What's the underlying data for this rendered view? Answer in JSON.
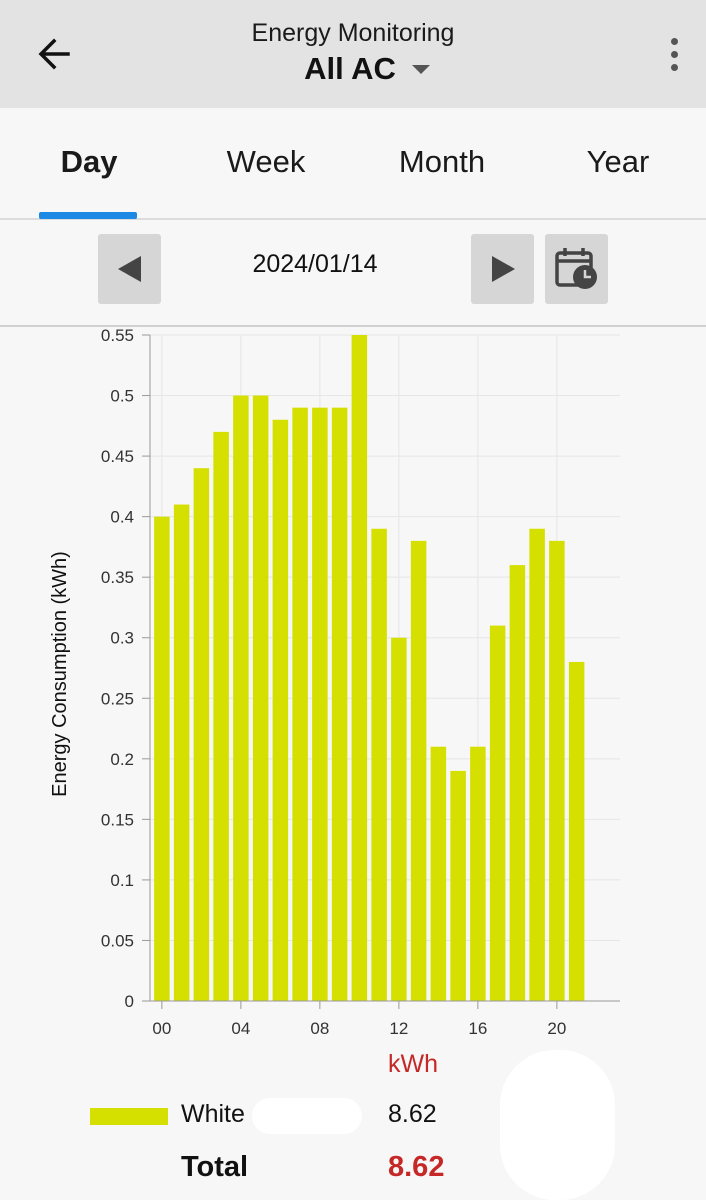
{
  "header": {
    "subtitle": "Energy Monitoring",
    "title": "All AC",
    "back_icon": "arrow-left-icon",
    "menu_icon": "more-vertical-icon",
    "dropdown_icon": "caret-down-icon"
  },
  "tabs": [
    {
      "label": "Day",
      "active": true
    },
    {
      "label": "Week",
      "active": false
    },
    {
      "label": "Month",
      "active": false
    },
    {
      "label": "Year",
      "active": false
    }
  ],
  "date_nav": {
    "date": "2024/01/14",
    "prev_icon": "triangle-left-icon",
    "next_icon": "triangle-right-icon",
    "calendar_icon": "calendar-clock-icon"
  },
  "colors": {
    "bar": "#d6e000",
    "accent_tab": "#1e88e5",
    "total_red": "#c62828"
  },
  "chart_data": {
    "type": "bar",
    "ylabel": "Energy Consumption (kWh)",
    "xlabel": "",
    "ylim": [
      0,
      0.55
    ],
    "yticks": [
      "0",
      "0.05",
      "0.1",
      "0.15",
      "0.2",
      "0.25",
      "0.3",
      "0.35",
      "0.4",
      "0.45",
      "0.5",
      "0.55"
    ],
    "x": [
      0,
      1,
      2,
      3,
      4,
      5,
      6,
      7,
      8,
      9,
      10,
      11,
      12,
      13,
      14,
      15,
      16,
      17,
      18,
      19,
      20,
      21
    ],
    "xticks": [
      {
        "hour": 0,
        "label": "00"
      },
      {
        "hour": 4,
        "label": "04"
      },
      {
        "hour": 8,
        "label": "08"
      },
      {
        "hour": 12,
        "label": "12"
      },
      {
        "hour": 16,
        "label": "16"
      },
      {
        "hour": 20,
        "label": "20"
      }
    ],
    "series": [
      {
        "name": "White",
        "values": [
          0.4,
          0.41,
          0.44,
          0.47,
          0.5,
          0.5,
          0.48,
          0.49,
          0.49,
          0.49,
          0.55,
          0.39,
          0.3,
          0.38,
          0.21,
          0.19,
          0.21,
          0.31,
          0.36,
          0.39,
          0.38,
          0.28
        ]
      }
    ],
    "grid": true,
    "legend": "bottom-left"
  },
  "summary": {
    "unit": "kWh",
    "rows": [
      {
        "name": "White",
        "value": "8.62"
      }
    ],
    "total_label": "Total",
    "total_value": "8.62"
  }
}
